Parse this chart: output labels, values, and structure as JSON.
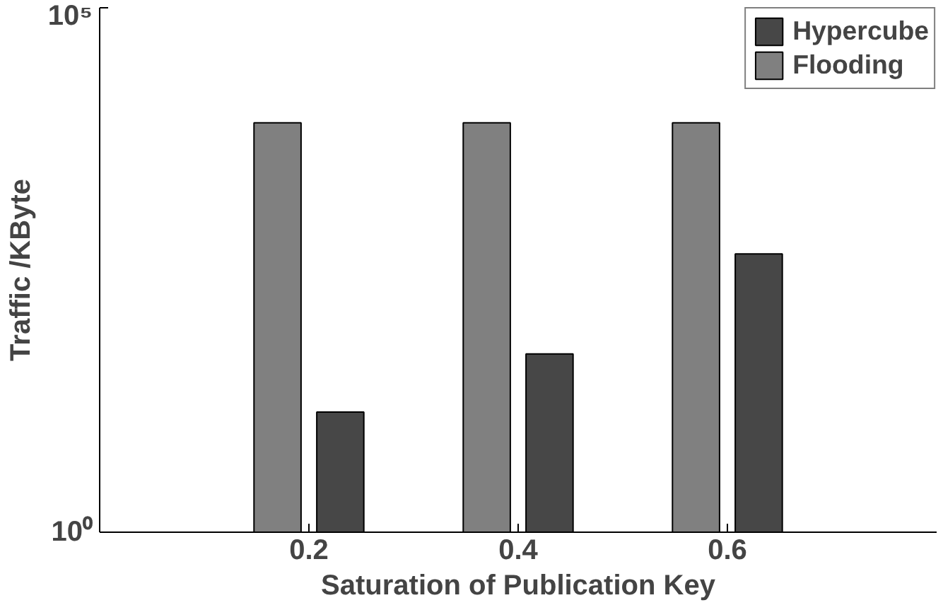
{
  "chart_data": {
    "type": "bar",
    "xlabel": "Saturation of Publication Key",
    "ylabel": "Traffic /KByte",
    "x": [
      0.2,
      0.4,
      0.6
    ],
    "series": [
      {
        "name": "Hypercube",
        "color": "#474747",
        "values": [
          14,
          50,
          450
        ]
      },
      {
        "name": "Flooding",
        "color": "#808080",
        "values": [
          8000,
          8000,
          8000
        ]
      }
    ],
    "xlim": [
      0,
      0.8
    ],
    "xticks": [
      0.2,
      0.4,
      0.6
    ],
    "ylim": [
      1,
      100000
    ],
    "yticks": [
      {
        "value": 1,
        "label": "10⁰"
      },
      {
        "value": 100000,
        "label": "10⁵"
      }
    ],
    "log": "y",
    "grid": false,
    "legend": "top right"
  }
}
